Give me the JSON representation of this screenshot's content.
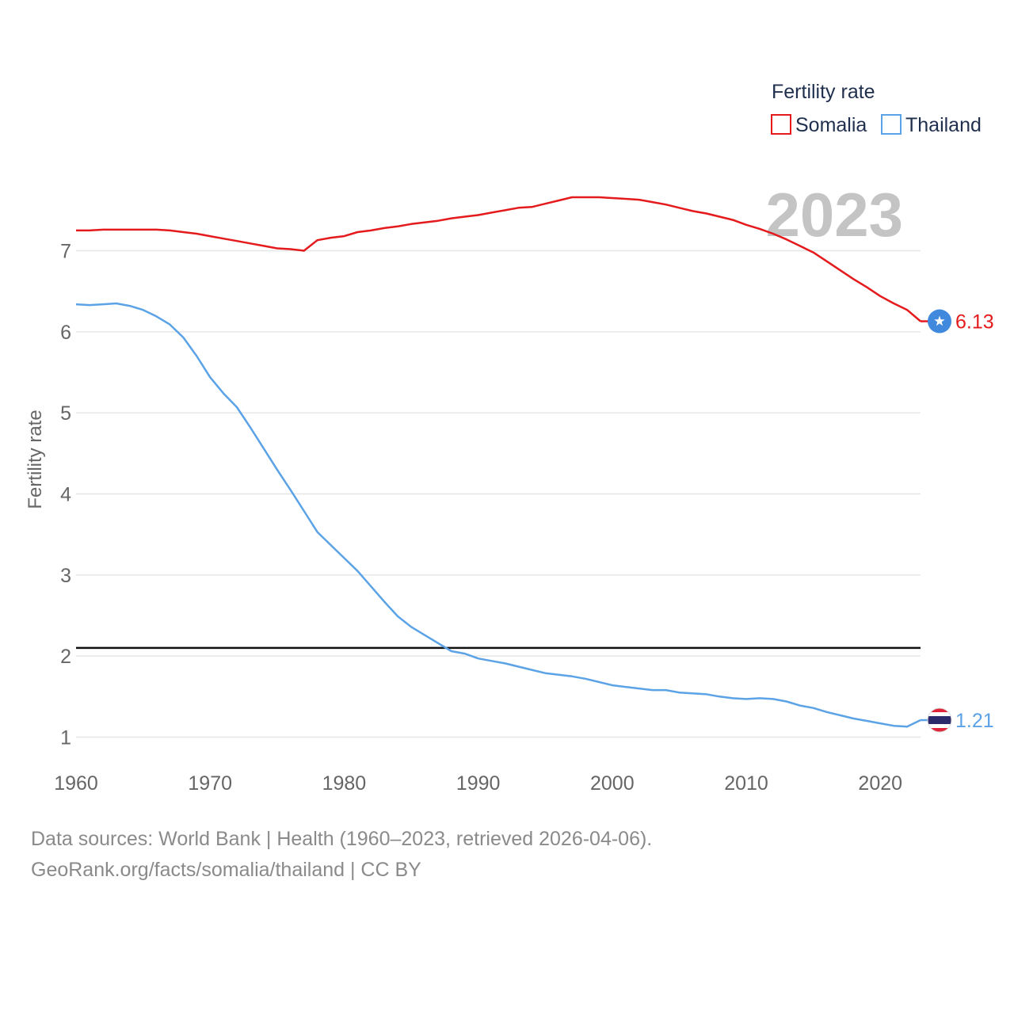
{
  "chart_data": {
    "type": "line",
    "title": "",
    "xlabel": "",
    "ylabel": "Fertility rate",
    "year_label": "2023",
    "xlim": [
      1960,
      2023
    ],
    "ylim": [
      0.7,
      8.0
    ],
    "x_ticks": [
      "1960",
      "1970",
      "1980",
      "1990",
      "2000",
      "2010",
      "2020"
    ],
    "y_ticks": [
      "1",
      "2",
      "3",
      "4",
      "5",
      "6",
      "7"
    ],
    "legend": {
      "title": "Fertility rate",
      "placement": "top-right",
      "entries": [
        "Somalia",
        "Thailand"
      ]
    },
    "reference_line": {
      "value": 2.1
    },
    "series": [
      {
        "name": "Somalia",
        "color": "#e41a1c",
        "end_label": "6.13",
        "flag_icon": "somalia-flag-icon",
        "x": [
          1960,
          1961,
          1962,
          1963,
          1964,
          1965,
          1966,
          1967,
          1968,
          1969,
          1970,
          1971,
          1972,
          1973,
          1974,
          1975,
          1976,
          1977,
          1978,
          1979,
          1980,
          1981,
          1982,
          1983,
          1984,
          1985,
          1986,
          1987,
          1988,
          1989,
          1990,
          1991,
          1992,
          1993,
          1994,
          1995,
          1996,
          1997,
          1998,
          1999,
          2000,
          2001,
          2002,
          2003,
          2004,
          2005,
          2006,
          2007,
          2008,
          2009,
          2010,
          2011,
          2012,
          2013,
          2014,
          2015,
          2016,
          2017,
          2018,
          2019,
          2020,
          2021,
          2022,
          2023
        ],
        "values": [
          7.25,
          7.25,
          7.26,
          7.26,
          7.26,
          7.26,
          7.26,
          7.25,
          7.23,
          7.21,
          7.18,
          7.15,
          7.12,
          7.09,
          7.06,
          7.03,
          7.02,
          7.0,
          7.13,
          7.16,
          7.18,
          7.23,
          7.25,
          7.28,
          7.3,
          7.33,
          7.35,
          7.37,
          7.4,
          7.42,
          7.44,
          7.47,
          7.5,
          7.53,
          7.54,
          7.58,
          7.62,
          7.66,
          7.66,
          7.66,
          7.65,
          7.64,
          7.63,
          7.6,
          7.57,
          7.53,
          7.49,
          7.46,
          7.42,
          7.38,
          7.32,
          7.27,
          7.21,
          7.14,
          7.06,
          6.98,
          6.87,
          6.76,
          6.65,
          6.55,
          6.44,
          6.35,
          6.27,
          6.13
        ]
      },
      {
        "name": "Thailand",
        "color": "#5ba3e6",
        "end_label": "1.21",
        "flag_icon": "thailand-flag-icon",
        "x": [
          1960,
          1961,
          1962,
          1963,
          1964,
          1965,
          1966,
          1967,
          1968,
          1969,
          1970,
          1971,
          1972,
          1973,
          1974,
          1975,
          1976,
          1977,
          1978,
          1979,
          1980,
          1981,
          1982,
          1983,
          1984,
          1985,
          1986,
          1987,
          1988,
          1989,
          1990,
          1991,
          1992,
          1993,
          1994,
          1995,
          1996,
          1997,
          1998,
          1999,
          2000,
          2001,
          2002,
          2003,
          2004,
          2005,
          2006,
          2007,
          2008,
          2009,
          2010,
          2011,
          2012,
          2013,
          2014,
          2015,
          2016,
          2017,
          2018,
          2019,
          2020,
          2021,
          2022,
          2023
        ],
        "values": [
          6.34,
          6.33,
          6.34,
          6.35,
          6.32,
          6.27,
          6.19,
          6.09,
          5.93,
          5.7,
          5.44,
          5.24,
          5.07,
          4.82,
          4.56,
          4.3,
          4.05,
          3.79,
          3.53,
          3.37,
          3.21,
          3.05,
          2.86,
          2.67,
          2.49,
          2.36,
          2.26,
          2.16,
          2.06,
          2.03,
          1.97,
          1.94,
          1.91,
          1.87,
          1.83,
          1.79,
          1.77,
          1.75,
          1.72,
          1.68,
          1.64,
          1.62,
          1.6,
          1.58,
          1.58,
          1.55,
          1.54,
          1.53,
          1.5,
          1.48,
          1.47,
          1.48,
          1.47,
          1.44,
          1.39,
          1.36,
          1.31,
          1.27,
          1.23,
          1.2,
          1.17,
          1.14,
          1.13,
          1.21
        ]
      }
    ]
  },
  "footer": {
    "source_line_1": "Data sources: World Bank | Health (1960–2023, retrieved 2026-04-06).",
    "source_line_2": "GeoRank.org/facts/somalia/thailand | CC BY"
  }
}
